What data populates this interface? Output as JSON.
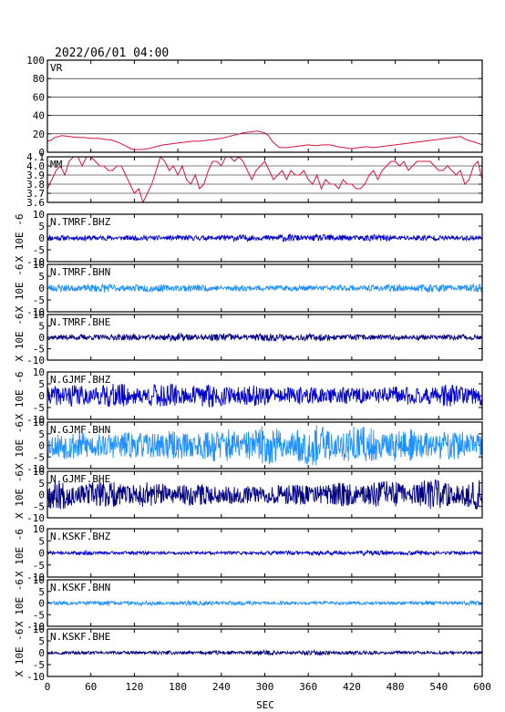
{
  "title": "2022/06/01 04:00",
  "x_axis": {
    "label": "SEC",
    "range": [
      0,
      600
    ],
    "ticks": [
      0,
      60,
      120,
      180,
      240,
      300,
      360,
      420,
      480,
      540,
      600
    ],
    "tick_labels": [
      "0",
      "60",
      "120",
      "180",
      "240",
      "300",
      "360",
      "420",
      "480",
      "540",
      "600"
    ]
  },
  "chart_data": [
    {
      "type": "line",
      "panel_label": "VR",
      "ylim": [
        0,
        100
      ],
      "yticks": [
        0,
        20,
        40,
        60,
        80,
        100
      ],
      "ytick_labels": [
        "0",
        "20",
        "40",
        "60",
        "80",
        "100"
      ],
      "grid": true,
      "color": "#dc143c",
      "x": [
        0,
        5,
        10,
        20,
        30,
        40,
        50,
        60,
        70,
        80,
        90,
        100,
        110,
        115,
        120,
        130,
        140,
        150,
        160,
        170,
        180,
        190,
        200,
        210,
        220,
        230,
        240,
        250,
        260,
        270,
        280,
        290,
        300,
        305,
        310,
        320,
        330,
        340,
        350,
        360,
        370,
        380,
        390,
        400,
        410,
        420,
        430,
        440,
        450,
        460,
        470,
        480,
        490,
        500,
        510,
        520,
        530,
        540,
        550,
        560,
        570,
        580,
        590,
        600
      ],
      "y": [
        12,
        13,
        16,
        18,
        17,
        16,
        16,
        15,
        15,
        14,
        13,
        10,
        6,
        4,
        3,
        3,
        4,
        6,
        8,
        9,
        10,
        11,
        12,
        12,
        13,
        14,
        15,
        17,
        19,
        21,
        22,
        23,
        21,
        18,
        12,
        5,
        5,
        6,
        7,
        8,
        7,
        8,
        8,
        6,
        5,
        4,
        5,
        6,
        5,
        6,
        7,
        8,
        9,
        10,
        11,
        12,
        13,
        14,
        15,
        16,
        17,
        13,
        11,
        8
      ]
    },
    {
      "type": "line",
      "panel_label": "MM",
      "ylim": [
        3.6,
        4.1
      ],
      "yticks": [
        3.6,
        3.7,
        3.8,
        3.9,
        4.0,
        4.1
      ],
      "ytick_labels": [
        "3.6",
        "3.7",
        "3.8",
        "3.9",
        "4.0",
        "4.1"
      ],
      "grid": true,
      "color": "#dc143c",
      "x": [
        0,
        6,
        12,
        18,
        24,
        30,
        36,
        42,
        48,
        54,
        60,
        66,
        72,
        78,
        84,
        90,
        96,
        102,
        108,
        114,
        120,
        126,
        132,
        138,
        144,
        150,
        156,
        162,
        168,
        174,
        180,
        186,
        192,
        198,
        204,
        210,
        216,
        222,
        228,
        234,
        240,
        246,
        252,
        258,
        264,
        270,
        276,
        282,
        288,
        294,
        300,
        306,
        312,
        318,
        324,
        330,
        336,
        342,
        348,
        354,
        360,
        366,
        372,
        378,
        384,
        390,
        396,
        402,
        408,
        414,
        420,
        426,
        432,
        438,
        444,
        450,
        456,
        462,
        468,
        474,
        480,
        486,
        492,
        498,
        504,
        510,
        516,
        522,
        528,
        534,
        540,
        546,
        552,
        558,
        564,
        570,
        576,
        582,
        588,
        594,
        600
      ],
      "y": [
        3.75,
        3.85,
        3.95,
        4.0,
        3.9,
        4.05,
        4.1,
        4.1,
        4.0,
        4.1,
        4.1,
        4.05,
        4.0,
        4.0,
        3.95,
        3.95,
        4.0,
        4.0,
        3.9,
        3.8,
        3.7,
        3.75,
        3.6,
        3.7,
        3.8,
        3.95,
        4.1,
        4.05,
        3.95,
        4.0,
        3.9,
        4.0,
        3.85,
        3.8,
        3.9,
        3.75,
        3.8,
        3.95,
        4.05,
        4.05,
        4.0,
        4.1,
        4.1,
        4.05,
        4.1,
        4.05,
        3.95,
        3.85,
        3.95,
        4.0,
        4.05,
        3.95,
        3.85,
        3.9,
        3.95,
        3.85,
        3.95,
        3.9,
        3.9,
        3.95,
        3.85,
        3.8,
        3.9,
        3.75,
        3.85,
        3.8,
        3.8,
        3.75,
        3.85,
        3.8,
        3.8,
        3.75,
        3.75,
        3.8,
        3.9,
        3.95,
        3.85,
        3.95,
        4.0,
        4.05,
        4.05,
        4.0,
        4.05,
        3.95,
        4.0,
        4.05,
        4.05,
        4.05,
        4.05,
        4.0,
        3.95,
        3.95,
        4.0,
        3.95,
        3.9,
        3.95,
        3.8,
        3.85,
        4.0,
        4.05,
        3.85
      ]
    },
    {
      "type": "waveform",
      "panel_label": "N.TMRF.BHZ",
      "ylim": [
        -10,
        10
      ],
      "yticks": [
        -10,
        -5,
        0,
        5,
        10
      ],
      "ytick_labels": [
        "-10",
        "-5",
        "0",
        "5",
        "10"
      ],
      "ylabel": "X 10E -6",
      "color": "#0000cd",
      "amplitude": 1.6,
      "seed": 11
    },
    {
      "type": "waveform",
      "panel_label": "N.TMRF.BHN",
      "ylim": [
        -10,
        10
      ],
      "yticks": [
        -10,
        -5,
        0,
        5,
        10
      ],
      "ytick_labels": [
        "-10",
        "-5",
        "0",
        "5",
        "10"
      ],
      "ylabel": "X 10E -6",
      "color": "#1e90ff",
      "amplitude": 1.8,
      "seed": 23
    },
    {
      "type": "waveform",
      "panel_label": "N.TMRF.BHE",
      "ylim": [
        -10,
        10
      ],
      "yticks": [
        -10,
        -5,
        0,
        5,
        10
      ],
      "ytick_labels": [
        "-10",
        "-5",
        "0",
        "5",
        "10"
      ],
      "ylabel": "X 10E -6",
      "color": "#000080",
      "amplitude": 1.8,
      "seed": 37
    },
    {
      "type": "waveform",
      "panel_label": "N.GJMF.BHZ",
      "ylim": [
        -10,
        10
      ],
      "yticks": [
        -10,
        -5,
        0,
        5,
        10
      ],
      "ytick_labels": [
        "-10",
        "-5",
        "0",
        "5",
        "10"
      ],
      "ylabel": "X 10E -6",
      "color": "#0000cd",
      "amplitude": 5.5,
      "seed": 41
    },
    {
      "type": "waveform",
      "panel_label": "N.GJMF.BHN",
      "ylim": [
        -10,
        10
      ],
      "yticks": [
        -10,
        -5,
        0,
        5,
        10
      ],
      "ytick_labels": [
        "-10",
        "-5",
        "0",
        "5",
        "10"
      ],
      "ylabel": "X 10E -6",
      "color": "#1e90ff",
      "amplitude": 9.0,
      "seed": 53
    },
    {
      "type": "waveform",
      "panel_label": "N.GJMF.BHE",
      "ylim": [
        -10,
        10
      ],
      "yticks": [
        -10,
        -5,
        0,
        5,
        10
      ],
      "ytick_labels": [
        "-10",
        "-5",
        "0",
        "5",
        "10"
      ],
      "ylabel": "X 10E -6",
      "color": "#000080",
      "amplitude": 6.5,
      "seed": 67
    },
    {
      "type": "waveform",
      "panel_label": "N.KSKF.BHZ",
      "ylim": [
        -10,
        10
      ],
      "yticks": [
        -10,
        -5,
        0,
        5,
        10
      ],
      "ytick_labels": [
        "-10",
        "-5",
        "0",
        "5",
        "10"
      ],
      "ylabel": "X 10E -6",
      "color": "#0000cd",
      "amplitude": 1.0,
      "seed": 71
    },
    {
      "type": "waveform",
      "panel_label": "N.KSKF.BHN",
      "ylim": [
        -10,
        10
      ],
      "yticks": [
        -10,
        -5,
        0,
        5,
        10
      ],
      "ytick_labels": [
        "-10",
        "-5",
        "0",
        "5",
        "10"
      ],
      "ylabel": "X 10E -6",
      "color": "#1e90ff",
      "amplitude": 1.1,
      "seed": 83
    },
    {
      "type": "waveform",
      "panel_label": "N.KSKF.BHE",
      "ylim": [
        -10,
        10
      ],
      "yticks": [
        -10,
        -5,
        0,
        5,
        10
      ],
      "ytick_labels": [
        "-10",
        "-5",
        "0",
        "5",
        "10"
      ],
      "ylabel": "X 10E -6",
      "color": "#000080",
      "amplitude": 1.0,
      "seed": 97
    }
  ]
}
